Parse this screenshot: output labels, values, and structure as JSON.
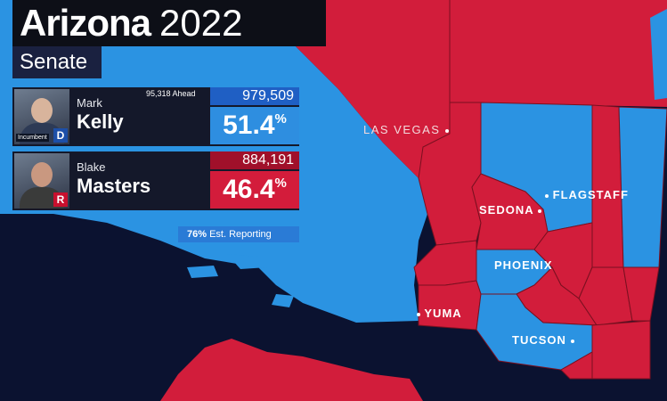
{
  "header": {
    "state": "Arizona",
    "year": "2022",
    "race": "Senate"
  },
  "candidates": [
    {
      "first_name": "Mark",
      "last_name": "Kelly",
      "party": "D",
      "incumbent_label": "Incumbent",
      "votes": "979,509",
      "percent": "51.4",
      "percent_sign": "%",
      "ahead_label": "95,318 Ahead"
    },
    {
      "first_name": "Blake",
      "last_name": "Masters",
      "party": "R",
      "votes": "884,191",
      "percent": "46.4",
      "percent_sign": "%"
    }
  ],
  "reporting": {
    "value": "76%",
    "label": "Est. Reporting"
  },
  "cities": {
    "las_vegas": "LAS VEGAS",
    "flagstaff": "FLAGSTAFF",
    "sedona": "SEDONA",
    "phoenix": "PHOENIX",
    "yuma": "YUMA",
    "tucson": "TUCSON"
  },
  "colors": {
    "dem": "#2e8ee0",
    "rep": "#d31c3b",
    "background": "#0b1230"
  }
}
